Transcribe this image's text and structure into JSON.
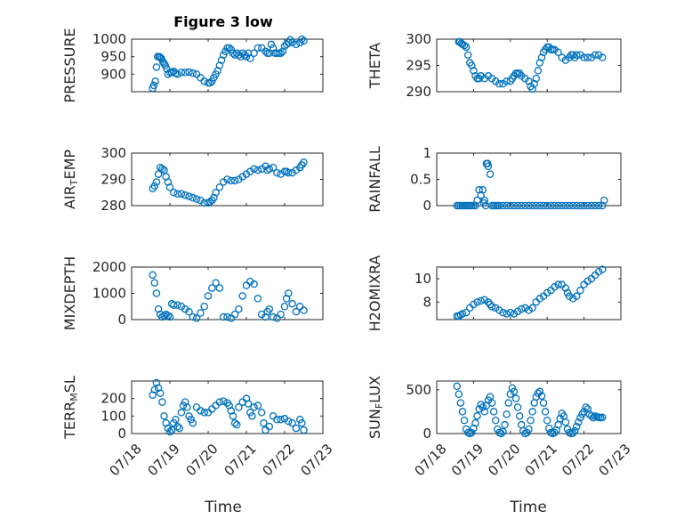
{
  "figure": {
    "title": "Figure 3 low",
    "marker_color": "#0072BD"
  },
  "chart_data": [
    {
      "type": "scatter",
      "title": "Figure 3 low",
      "ylabel": "PRESSURE",
      "ylim": [
        850,
        1000
      ],
      "yticks": [
        900,
        950,
        1000
      ],
      "xlim": [
        0,
        5
      ],
      "xticks": [
        0,
        1,
        2,
        3,
        4,
        5
      ],
      "x": [
        0.55,
        0.58,
        0.62,
        0.65,
        0.68,
        0.72,
        0.75,
        0.78,
        0.82,
        0.85,
        0.88,
        0.92,
        0.95,
        1.0,
        1.05,
        1.1,
        1.15,
        1.2,
        1.3,
        1.4,
        1.5,
        1.6,
        1.7,
        1.8,
        1.9,
        2.0,
        2.05,
        2.1,
        2.15,
        2.2,
        2.25,
        2.3,
        2.35,
        2.4,
        2.45,
        2.5,
        2.55,
        2.6,
        2.65,
        2.7,
        2.75,
        2.8,
        2.85,
        2.9,
        2.95,
        3.0,
        3.05,
        3.1,
        3.2,
        3.3,
        3.4,
        3.5,
        3.55,
        3.6,
        3.65,
        3.7,
        3.75,
        3.8,
        3.85,
        3.9,
        3.95,
        4.0,
        4.05,
        4.1,
        4.15,
        4.2,
        4.3,
        4.4,
        4.45,
        4.5
      ],
      "y": [
        860,
        868,
        880,
        920,
        950,
        950,
        948,
        944,
        935,
        930,
        925,
        915,
        900,
        905,
        905,
        908,
        903,
        900,
        905,
        905,
        906,
        903,
        900,
        890,
        880,
        875,
        875,
        880,
        890,
        900,
        910,
        925,
        940,
        955,
        965,
        975,
        975,
        970,
        960,
        955,
        960,
        955,
        950,
        960,
        955,
        950,
        960,
        945,
        960,
        975,
        975,
        965,
        960,
        960,
        985,
        975,
        960,
        960,
        960,
        960,
        965,
        980,
        985,
        990,
        998,
        990,
        985,
        990,
        1000,
        995
      ]
    },
    {
      "type": "scatter",
      "ylabel": "THETA",
      "ylim": [
        290,
        300
      ],
      "yticks": [
        290,
        295,
        300
      ],
      "xlim": [
        0,
        5
      ],
      "xticks": [
        0,
        1,
        2,
        3,
        4,
        5
      ],
      "x": [
        0.6,
        0.63,
        0.67,
        0.7,
        0.75,
        0.8,
        0.85,
        0.9,
        0.95,
        1.0,
        1.05,
        1.1,
        1.15,
        1.2,
        1.3,
        1.4,
        1.5,
        1.6,
        1.7,
        1.8,
        1.9,
        2.0,
        2.05,
        2.1,
        2.15,
        2.2,
        2.25,
        2.3,
        2.4,
        2.5,
        2.55,
        2.6,
        2.65,
        2.7,
        2.75,
        2.8,
        2.85,
        2.9,
        2.95,
        3.0,
        3.05,
        3.1,
        3.15,
        3.2,
        3.3,
        3.4,
        3.5,
        3.6,
        3.65,
        3.7,
        3.75,
        3.8,
        3.9,
        4.0,
        4.1,
        4.2,
        4.3,
        4.4,
        4.5
      ],
      "y": [
        299.5,
        299.5,
        299.2,
        299.0,
        298.8,
        298.5,
        297.0,
        295.5,
        295.0,
        294.0,
        293.0,
        292.5,
        292.5,
        293.0,
        292.5,
        293.0,
        292.5,
        292.0,
        291.5,
        291.5,
        292.0,
        292.0,
        292.5,
        293.0,
        293.5,
        293.5,
        293.5,
        293.0,
        292.5,
        292.0,
        291.0,
        290.5,
        291.5,
        292.5,
        294.0,
        295.5,
        296.5,
        297.5,
        298.0,
        298.5,
        298.5,
        298.0,
        298.0,
        298.0,
        297.5,
        296.5,
        296.0,
        296.5,
        297.0,
        297.0,
        296.5,
        297.0,
        297.0,
        296.5,
        296.5,
        296.5,
        297.0,
        297.0,
        296.5
      ]
    },
    {
      "type": "scatter",
      "ylabel": "AIR_TEMP",
      "ylim": [
        280,
        300
      ],
      "yticks": [
        280,
        290,
        300
      ],
      "xlim": [
        0,
        5
      ],
      "xticks": [
        0,
        1,
        2,
        3,
        4,
        5
      ],
      "x": [
        0.55,
        0.6,
        0.65,
        0.7,
        0.75,
        0.8,
        0.85,
        0.9,
        0.95,
        1.0,
        1.1,
        1.2,
        1.3,
        1.4,
        1.5,
        1.6,
        1.7,
        1.8,
        1.9,
        2.0,
        2.05,
        2.1,
        2.15,
        2.2,
        2.3,
        2.4,
        2.5,
        2.6,
        2.7,
        2.8,
        2.9,
        3.0,
        3.1,
        3.2,
        3.3,
        3.4,
        3.5,
        3.55,
        3.6,
        3.7,
        3.8,
        3.9,
        4.0,
        4.05,
        4.1,
        4.2,
        4.3,
        4.4,
        4.45,
        4.5
      ],
      "y": [
        286.5,
        287.5,
        289,
        292,
        294.5,
        294,
        293.5,
        291,
        289,
        287,
        285,
        284.5,
        284.5,
        284,
        283.5,
        283,
        282.5,
        282,
        281,
        281,
        281.5,
        282,
        283,
        285,
        287,
        289,
        290,
        289.5,
        289.5,
        290,
        291,
        292,
        293,
        294,
        293.5,
        294,
        295,
        293.5,
        294,
        294.5,
        292.5,
        292,
        293,
        293,
        292.5,
        292.5,
        293.5,
        294.5,
        295.5,
        296.5
      ]
    },
    {
      "type": "scatter",
      "ylabel": "RAINFALL",
      "ylim": [
        0,
        1
      ],
      "yticks": [
        0,
        0.5,
        1
      ],
      "xlim": [
        0,
        5
      ],
      "xticks": [
        0,
        1,
        2,
        3,
        4,
        5
      ],
      "x": [
        0.55,
        0.6,
        0.65,
        0.7,
        0.75,
        0.8,
        0.85,
        0.9,
        0.95,
        1.0,
        1.05,
        1.1,
        1.15,
        1.2,
        1.25,
        1.28,
        1.3,
        1.33,
        1.35,
        1.38,
        1.4,
        1.45,
        1.5,
        1.55,
        1.6,
        1.65,
        1.7,
        1.8,
        1.9,
        2.0,
        2.1,
        2.2,
        2.3,
        2.4,
        2.5,
        2.6,
        2.7,
        2.8,
        2.9,
        3.0,
        3.1,
        3.2,
        3.3,
        3.4,
        3.5,
        3.6,
        3.7,
        3.8,
        3.9,
        4.0,
        4.1,
        4.2,
        4.3,
        4.4,
        4.5,
        4.55
      ],
      "y": [
        0,
        0,
        0,
        0,
        0,
        0,
        0,
        0,
        0,
        0,
        0,
        0.1,
        0.3,
        0.2,
        0.3,
        0.05,
        0.1,
        0,
        0.8,
        0.8,
        0.75,
        0.6,
        0,
        0,
        0,
        0,
        0,
        0,
        0,
        0,
        0,
        0,
        0,
        0,
        0,
        0,
        0,
        0,
        0,
        0,
        0,
        0,
        0,
        0,
        0,
        0,
        0,
        0,
        0,
        0,
        0,
        0,
        0,
        0,
        0,
        0.1
      ]
    },
    {
      "type": "scatter",
      "ylabel": "MIXDEPTH",
      "ylim": [
        0,
        2000
      ],
      "yticks": [
        0,
        1000,
        2000
      ],
      "xlim": [
        0,
        5
      ],
      "xticks": [
        0,
        1,
        2,
        3,
        4,
        5
      ],
      "x": [
        0.55,
        0.6,
        0.65,
        0.7,
        0.75,
        0.8,
        0.85,
        0.9,
        0.95,
        1.0,
        1.05,
        1.1,
        1.2,
        1.3,
        1.4,
        1.5,
        1.6,
        1.7,
        1.8,
        1.9,
        2.0,
        2.1,
        2.2,
        2.3,
        2.4,
        2.5,
        2.6,
        2.7,
        2.8,
        2.9,
        3.0,
        3.1,
        3.2,
        3.3,
        3.4,
        3.5,
        3.55,
        3.6,
        3.7,
        3.8,
        3.9,
        4.0,
        4.05,
        4.1,
        4.2,
        4.3,
        4.4,
        4.5
      ],
      "y": [
        1700,
        1400,
        1000,
        400,
        200,
        100,
        150,
        200,
        150,
        100,
        600,
        550,
        550,
        500,
        400,
        300,
        100,
        50,
        250,
        500,
        900,
        1200,
        1400,
        1200,
        100,
        100,
        50,
        200,
        400,
        900,
        1300,
        1450,
        1350,
        800,
        200,
        100,
        300,
        400,
        100,
        50,
        200,
        500,
        800,
        1000,
        600,
        300,
        500,
        350
      ]
    },
    {
      "type": "scatter",
      "ylabel": "H2OMIXRA",
      "ylim": [
        6.5,
        11
      ],
      "yticks": [
        8,
        10
      ],
      "xlim": [
        0,
        5
      ],
      "xticks": [
        0,
        1,
        2,
        3,
        4,
        5
      ],
      "x": [
        0.55,
        0.6,
        0.65,
        0.7,
        0.8,
        0.9,
        1.0,
        1.1,
        1.2,
        1.3,
        1.4,
        1.45,
        1.5,
        1.6,
        1.7,
        1.8,
        1.9,
        2.0,
        2.1,
        2.2,
        2.3,
        2.4,
        2.5,
        2.6,
        2.7,
        2.8,
        2.9,
        3.0,
        3.1,
        3.2,
        3.3,
        3.4,
        3.5,
        3.55,
        3.6,
        3.7,
        3.8,
        3.9,
        4.0,
        4.1,
        4.2,
        4.3,
        4.4,
        4.5
      ],
      "y": [
        6.8,
        6.8,
        6.9,
        7.0,
        7.1,
        7.5,
        7.8,
        8.0,
        8.1,
        8.2,
        8.0,
        7.8,
        7.6,
        7.5,
        7.3,
        7.1,
        7.0,
        7.1,
        7.0,
        7.2,
        7.4,
        7.5,
        7.3,
        7.5,
        8.0,
        8.3,
        8.5,
        8.8,
        9.0,
        9.3,
        9.5,
        9.5,
        9.2,
        8.8,
        8.5,
        8.3,
        8.5,
        9.0,
        9.5,
        9.8,
        10.0,
        10.3,
        10.6,
        10.8
      ]
    },
    {
      "type": "scatter",
      "ylabel": "TERR_MSL",
      "ylim": [
        0,
        300
      ],
      "yticks": [
        0,
        100,
        200
      ],
      "xlim": [
        0,
        5
      ],
      "xticks": [
        0,
        1,
        2,
        3,
        4,
        5
      ],
      "x": [
        0.55,
        0.6,
        0.65,
        0.7,
        0.75,
        0.8,
        0.85,
        0.9,
        0.95,
        1.0,
        1.05,
        1.1,
        1.15,
        1.2,
        1.25,
        1.3,
        1.35,
        1.4,
        1.45,
        1.5,
        1.55,
        1.6,
        1.7,
        1.8,
        1.9,
        2.0,
        2.1,
        2.2,
        2.3,
        2.4,
        2.5,
        2.55,
        2.6,
        2.65,
        2.7,
        2.75,
        2.8,
        2.9,
        3.0,
        3.05,
        3.1,
        3.15,
        3.2,
        3.3,
        3.4,
        3.45,
        3.5,
        3.6,
        3.7,
        3.8,
        3.9,
        4.0,
        4.1,
        4.2,
        4.3,
        4.4,
        4.45,
        4.5
      ],
      "y": [
        220,
        250,
        290,
        260,
        230,
        180,
        100,
        60,
        30,
        10,
        20,
        60,
        80,
        40,
        30,
        120,
        160,
        180,
        150,
        100,
        80,
        60,
        150,
        130,
        120,
        120,
        140,
        160,
        180,
        185,
        175,
        160,
        130,
        100,
        60,
        50,
        150,
        180,
        200,
        170,
        120,
        100,
        150,
        160,
        120,
        60,
        20,
        40,
        100,
        80,
        80,
        85,
        70,
        60,
        30,
        80,
        60,
        20
      ]
    },
    {
      "type": "scatter",
      "ylabel": "SUN_FLUX",
      "ylim": [
        0,
        600
      ],
      "yticks": [
        0,
        500
      ],
      "xlim": [
        0,
        5
      ],
      "xticks": [
        0,
        1,
        2,
        3,
        4,
        5
      ],
      "x": [
        0.55,
        0.6,
        0.65,
        0.7,
        0.75,
        0.8,
        0.85,
        0.9,
        0.95,
        1.0,
        1.05,
        1.1,
        1.15,
        1.2,
        1.25,
        1.3,
        1.35,
        1.4,
        1.45,
        1.5,
        1.55,
        1.6,
        1.65,
        1.7,
        1.75,
        1.8,
        1.85,
        1.9,
        1.95,
        2.0,
        2.05,
        2.1,
        2.15,
        2.2,
        2.25,
        2.3,
        2.35,
        2.4,
        2.45,
        2.5,
        2.55,
        2.6,
        2.65,
        2.7,
        2.75,
        2.8,
        2.85,
        2.9,
        2.95,
        3.0,
        3.05,
        3.1,
        3.15,
        3.2,
        3.25,
        3.3,
        3.35,
        3.4,
        3.45,
        3.5,
        3.55,
        3.6,
        3.65,
        3.7,
        3.75,
        3.8,
        3.85,
        3.9,
        3.95,
        4.0,
        4.05,
        4.1,
        4.15,
        4.2,
        4.25,
        4.3,
        4.35,
        4.4,
        4.45,
        4.5
      ],
      "y": [
        540,
        450,
        350,
        250,
        150,
        50,
        10,
        0,
        10,
        60,
        120,
        200,
        280,
        330,
        300,
        250,
        320,
        380,
        420,
        350,
        250,
        150,
        50,
        10,
        0,
        20,
        100,
        220,
        350,
        450,
        520,
        480,
        400,
        300,
        200,
        100,
        30,
        0,
        10,
        50,
        150,
        250,
        350,
        420,
        460,
        480,
        430,
        350,
        250,
        150,
        60,
        10,
        0,
        10,
        40,
        100,
        170,
        230,
        200,
        130,
        50,
        10,
        0,
        5,
        30,
        80,
        130,
        180,
        220,
        250,
        300,
        280,
        220,
        200,
        180,
        200,
        190,
        185,
        180,
        185
      ]
    }
  ],
  "time_axis": {
    "tick_labels": [
      "07/18",
      "07/19",
      "07/20",
      "07/21",
      "07/22",
      "07/23"
    ],
    "label_left": "Time",
    "label_right": "Time"
  }
}
